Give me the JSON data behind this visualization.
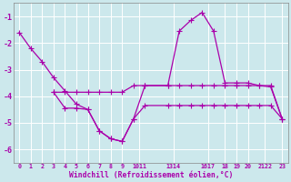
{
  "background_color": "#cce8ec",
  "grid_color": "#b0d8dc",
  "line_color": "#aa00aa",
  "line1_x": [
    0,
    1,
    2,
    3,
    4,
    5,
    6,
    7,
    8,
    9,
    10,
    11,
    13,
    14,
    15,
    16,
    17,
    18,
    19,
    20,
    21,
    22,
    23
  ],
  "line1_y": [
    -1.6,
    -2.2,
    -2.7,
    -3.3,
    -3.8,
    -4.3,
    -4.5,
    -5.3,
    -5.6,
    -5.7,
    -4.85,
    -3.6,
    -3.6,
    -1.55,
    -1.15,
    -0.85,
    -1.55,
    -3.5,
    -3.5,
    -3.5,
    -3.6,
    -3.65,
    -4.85
  ],
  "line2_x": [
    3,
    4,
    5,
    6,
    7,
    8,
    9,
    10,
    11,
    13,
    14,
    15,
    16,
    17,
    18,
    19,
    20,
    21,
    22,
    23
  ],
  "line2_y": [
    -3.85,
    -3.85,
    -3.85,
    -3.85,
    -3.85,
    -3.85,
    -3.85,
    -3.6,
    -3.6,
    -3.6,
    -3.6,
    -3.6,
    -3.6,
    -3.6,
    -3.6,
    -3.6,
    -3.6,
    -3.6,
    -3.6,
    -4.85
  ],
  "line3_x": [
    3,
    4,
    5,
    6,
    7,
    8,
    9,
    10,
    11,
    13,
    14,
    15,
    16,
    17,
    18,
    19,
    20,
    21,
    22,
    23
  ],
  "line3_y": [
    -3.85,
    -4.45,
    -4.45,
    -4.5,
    -5.3,
    -5.6,
    -5.7,
    -4.85,
    -4.35,
    -4.35,
    -4.35,
    -4.35,
    -4.35,
    -4.35,
    -4.35,
    -4.35,
    -4.35,
    -4.35,
    -4.35,
    -4.85
  ],
  "ylim": [
    -6.5,
    -0.5
  ],
  "xlim": [
    -0.5,
    23.5
  ],
  "yticks": [
    -6,
    -5,
    -4,
    -3,
    -2,
    -1
  ],
  "xlabel": "Windchill (Refroidissement éolien,°C)"
}
